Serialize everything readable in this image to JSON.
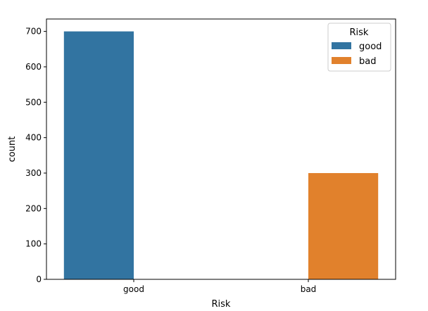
{
  "chart_data": {
    "type": "bar",
    "title": "",
    "xlabel": "Risk",
    "ylabel": "count",
    "categories": [
      "good",
      "bad"
    ],
    "series": [
      {
        "name": "good",
        "values": [
          700,
          0
        ],
        "color": "#3274a1"
      },
      {
        "name": "bad",
        "values": [
          0,
          300
        ],
        "color": "#e1812c"
      }
    ],
    "ylim": [
      0,
      735
    ],
    "yticks": [
      0,
      100,
      200,
      300,
      400,
      500,
      600,
      700
    ],
    "ytick_labels": [
      "0",
      "100",
      "200",
      "300",
      "400",
      "500",
      "600",
      "700"
    ],
    "grid": false,
    "legend": {
      "title": "Risk",
      "placement": "top-right"
    }
  }
}
